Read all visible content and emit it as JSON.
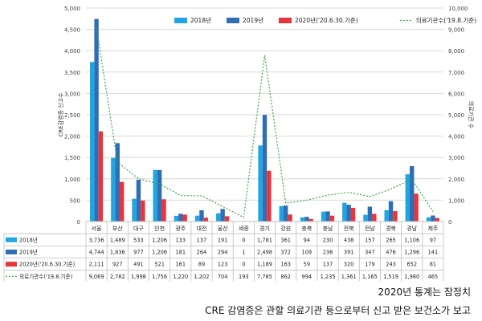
{
  "chart_data": {
    "type": "bar",
    "categories": [
      "서울",
      "부산",
      "대구",
      "인천",
      "광주",
      "대전",
      "울산",
      "세종",
      "경기",
      "강원",
      "충북",
      "충남",
      "전북",
      "전남",
      "경북",
      "경남",
      "제주"
    ],
    "series": [
      {
        "name": "2018년",
        "kind": "bar",
        "axis": "left",
        "color": "#1fa6e0",
        "values": [
          3736,
          1489,
          533,
          1206,
          133,
          137,
          191,
          0,
          1781,
          361,
          94,
          230,
          438,
          157,
          265,
          1106,
          97
        ]
      },
      {
        "name": "2019년",
        "kind": "bar",
        "axis": "left",
        "color": "#2f6db5",
        "values": [
          4744,
          1836,
          977,
          1206,
          181,
          264,
          294,
          1,
          2498,
          372,
          109,
          236,
          391,
          347,
          476,
          1296,
          141
        ]
      },
      {
        "name": "2020년('20.6.30.기준)",
        "kind": "bar",
        "axis": "left",
        "color": "#e8343a",
        "values": [
          2111,
          927,
          491,
          521,
          161,
          89,
          123,
          0,
          1189,
          163,
          59,
          137,
          320,
          179,
          243,
          652,
          81
        ]
      },
      {
        "name": "의료기관수('19.8.기준)",
        "kind": "line",
        "axis": "right",
        "color": "#3aa844",
        "values": [
          9069,
          2782,
          1998,
          1756,
          1220,
          1202,
          704,
          193,
          7785,
          862,
          994,
          1235,
          1361,
          1165,
          1519,
          1980,
          465
        ]
      }
    ],
    "display_values": [
      [
        "3,736",
        "1,489",
        "533",
        "1,206",
        "133",
        "137",
        "191",
        "0",
        "1,781",
        "361",
        "94",
        "230",
        "438",
        "157",
        "265",
        "1,106",
        "97"
      ],
      [
        "4,744",
        "1,836",
        "977",
        "1,206",
        "181",
        "264",
        "294",
        "1",
        "2,498",
        "372",
        "109",
        "236",
        "391",
        "347",
        "476",
        "1,296",
        "141"
      ],
      [
        "2,111",
        "927",
        "491",
        "521",
        "161",
        "89",
        "123",
        "0",
        "1,189",
        "163",
        "59",
        "137",
        "320",
        "179",
        "243",
        "652",
        "81"
      ],
      [
        "9,069",
        "2,782",
        "1,998",
        "1,756",
        "1,220",
        "1,202",
        "704",
        "193",
        "7,785",
        "862",
        "994",
        "1,235",
        "1,361",
        "1,165",
        "1,519",
        "1,980",
        "465"
      ]
    ],
    "ylabel": "CRE감염증 신고수",
    "y2label": "의료기관 수",
    "ylim": [
      0,
      5000
    ],
    "y2lim": [
      0,
      10000
    ],
    "yticks": [
      "0",
      "500",
      "1,000",
      "1,500",
      "2,000",
      "2,500",
      "3,000",
      "3,500",
      "4,000",
      "4,500",
      "5,000"
    ],
    "y2ticks": [
      "0",
      "1,000",
      "2,000",
      "3,000",
      "4,000",
      "5,000",
      "6,000",
      "7,000",
      "8,000",
      "9,000",
      "10,000"
    ],
    "legend_position": "top-right",
    "data_table": true
  },
  "captions": {
    "line1": "2020년 통계는 잠정치",
    "line2": "CRE 감염증은 관할 의료기관 등으로부터 신고 받은 보건소가 보고"
  }
}
